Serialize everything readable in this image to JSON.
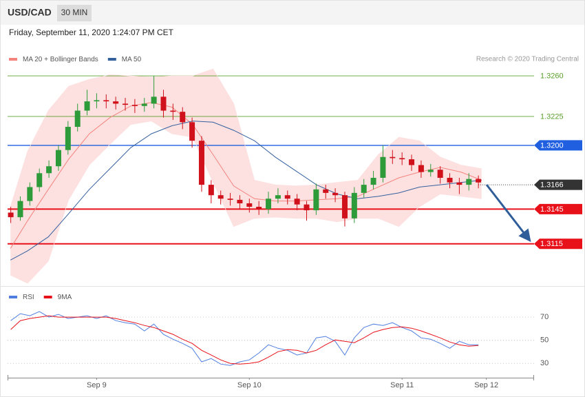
{
  "header": {
    "symbol": "USD/CAD",
    "timeframe": "30 MIN",
    "timestamp": "Friday, September 11, 2020 1:24:07 PM CET"
  },
  "chart_data": [
    {
      "type": "candlestick",
      "source": "Research © 2020 Trading Central",
      "xlim": [
        0,
        165.5
      ],
      "ylim": [
        1.3078,
        1.3266
      ],
      "up_color": "#2e9b3a",
      "down_color": "#d0101a",
      "x": [
        1,
        4,
        7,
        10,
        13,
        16,
        19,
        22,
        25,
        28,
        31,
        34,
        37,
        40,
        43,
        46,
        49,
        52,
        55,
        58,
        61,
        64,
        67,
        70,
        73,
        76,
        79,
        82,
        85,
        88,
        91,
        94,
        97,
        100,
        103,
        106,
        109,
        112,
        115,
        118,
        121,
        124,
        127,
        130,
        133,
        136,
        139,
        142,
        145,
        148
      ],
      "open": [
        1.3142,
        1.3138,
        1.3152,
        1.3164,
        1.3176,
        1.3182,
        1.3196,
        1.3216,
        1.323,
        1.3238,
        1.3239,
        1.3238,
        1.3236,
        1.3235,
        1.3234,
        1.3236,
        1.3242,
        1.323,
        1.3229,
        1.322,
        1.3204,
        1.3166,
        1.3157,
        1.3154,
        1.3153,
        1.315,
        1.3147,
        1.3145,
        1.3154,
        1.3157,
        1.3154,
        1.3149,
        1.3144,
        1.3162,
        1.3159,
        1.3157,
        1.3137,
        1.3159,
        1.3166,
        1.3172,
        1.319,
        1.3189,
        1.3188,
        1.3183,
        1.3177,
        1.3179,
        1.3172,
        1.3168,
        1.3166,
        1.3171
      ],
      "high": [
        1.3147,
        1.3156,
        1.3168,
        1.318,
        1.3187,
        1.32,
        1.3221,
        1.3236,
        1.3248,
        1.3245,
        1.3244,
        1.3242,
        1.3241,
        1.324,
        1.3241,
        1.326,
        1.3248,
        1.3236,
        1.3233,
        1.3224,
        1.3208,
        1.317,
        1.3161,
        1.3159,
        1.3157,
        1.3154,
        1.3152,
        1.316,
        1.3163,
        1.3161,
        1.3158,
        1.3152,
        1.3167,
        1.3166,
        1.3163,
        1.316,
        1.3164,
        1.3171,
        1.3178,
        1.32,
        1.3196,
        1.3194,
        1.3192,
        1.3187,
        1.3184,
        1.3182,
        1.3176,
        1.3172,
        1.3176,
        1.3174
      ],
      "low": [
        1.3133,
        1.3135,
        1.3148,
        1.316,
        1.3172,
        1.3178,
        1.3192,
        1.3212,
        1.3226,
        1.3232,
        1.3232,
        1.3231,
        1.323,
        1.3228,
        1.3229,
        1.3232,
        1.3224,
        1.3222,
        1.3214,
        1.3198,
        1.316,
        1.315,
        1.3149,
        1.3148,
        1.3145,
        1.3142,
        1.314,
        1.3141,
        1.315,
        1.3149,
        1.3144,
        1.3135,
        1.314,
        1.3154,
        1.3151,
        1.313,
        1.3133,
        1.3155,
        1.3162,
        1.3168,
        1.3184,
        1.3183,
        1.3178,
        1.3172,
        1.3173,
        1.3167,
        1.3163,
        1.3158,
        1.3161,
        1.3163
      ],
      "close": [
        1.3138,
        1.3152,
        1.3164,
        1.3176,
        1.3182,
        1.3196,
        1.3216,
        1.323,
        1.3238,
        1.3239,
        1.3238,
        1.3236,
        1.3235,
        1.3234,
        1.3236,
        1.3242,
        1.323,
        1.3229,
        1.322,
        1.3204,
        1.3166,
        1.3157,
        1.3154,
        1.3153,
        1.315,
        1.3147,
        1.3145,
        1.3154,
        1.3157,
        1.3154,
        1.3149,
        1.3144,
        1.3162,
        1.3159,
        1.3157,
        1.3137,
        1.3159,
        1.3166,
        1.3172,
        1.319,
        1.3189,
        1.3188,
        1.3183,
        1.3177,
        1.3179,
        1.3172,
        1.3168,
        1.3166,
        1.3171,
        1.3168
      ],
      "series": [
        {
          "name": "MA 20 + Bollinger Bands",
          "color": "#f4827d",
          "band_color": "#fde1e1",
          "x": [
            0.9,
            6.3,
            12.8,
            19.2,
            25.7,
            32.2,
            38.7,
            45.2,
            51.7,
            58.2,
            64.6,
            71.1,
            77.6,
            84.1,
            90.6,
            97.1,
            103.6,
            110.1,
            116.5,
            123.0,
            129.5,
            136.0,
            142.5,
            149.0
          ],
          "values": [
            1.3111,
            1.3135,
            1.3162,
            1.3188,
            1.321,
            1.3224,
            1.3234,
            1.3237,
            1.3233,
            1.3218,
            1.3192,
            1.3165,
            1.3154,
            1.3152,
            1.3152,
            1.3153,
            1.3154,
            1.3156,
            1.3164,
            1.3172,
            1.3177,
            1.3181,
            1.3177,
            1.317
          ],
          "upper": [
            1.3147,
            1.3195,
            1.323,
            1.3251,
            1.3257,
            1.3261,
            1.326,
            1.3259,
            1.326,
            1.326,
            1.3266,
            1.3236,
            1.317,
            1.3166,
            1.3165,
            1.3166,
            1.3168,
            1.317,
            1.3192,
            1.3207,
            1.3204,
            1.319,
            1.3183,
            1.318
          ],
          "lower": [
            1.3088,
            1.3081,
            1.31,
            1.3153,
            1.3183,
            1.3201,
            1.3218,
            1.3221,
            1.321,
            1.3207,
            1.3168,
            1.313,
            1.3137,
            1.3138,
            1.3137,
            1.3137,
            1.3134,
            1.3137,
            1.3137,
            1.313,
            1.3147,
            1.3158,
            1.3156,
            1.3154
          ]
        },
        {
          "name": "MA 50",
          "color": "#35609e",
          "x": [
            0.9,
            6.3,
            12.8,
            19.2,
            25.7,
            32.2,
            38.7,
            45.2,
            51.7,
            58.2,
            64.6,
            71.1,
            77.6,
            84.1,
            90.6,
            97.1,
            103.6,
            110.1,
            116.5,
            123.0,
            129.5,
            136.0,
            142.5,
            149.0
          ],
          "values": [
            1.3101,
            1.3109,
            1.3121,
            1.3141,
            1.3162,
            1.318,
            1.3198,
            1.321,
            1.3217,
            1.3221,
            1.322,
            1.3213,
            1.3204,
            1.319,
            1.3178,
            1.3166,
            1.3158,
            1.3154,
            1.3156,
            1.3159,
            1.3164,
            1.3166,
            1.3168,
            1.317
          ]
        }
      ],
      "levels": [
        {
          "value": 1.326,
          "label": "1.3260",
          "color": "#5aa02c",
          "style": "thin",
          "tag": false
        },
        {
          "value": 1.3225,
          "label": "1.3225",
          "color": "#5aa02c",
          "style": "thin",
          "tag": false
        },
        {
          "value": 1.32,
          "label": "1.3200",
          "color": "#1f5fe0",
          "style": "medium",
          "tag": true
        },
        {
          "value": 1.3166,
          "label": "1.3166",
          "color": "#333333",
          "style": "dotted",
          "tag": true
        },
        {
          "value": 1.3145,
          "label": "1.3145",
          "color": "#e8111a",
          "style": "thick",
          "tag": true
        },
        {
          "value": 1.3115,
          "label": "1.3115",
          "color": "#e8111a",
          "style": "thick",
          "tag": true
        }
      ]
    },
    {
      "type": "line",
      "xlim": [
        0,
        165.5
      ],
      "ylim": [
        20,
        82
      ],
      "yticks": [
        30,
        50,
        70
      ],
      "grid": true,
      "xticks": [
        {
          "value": 28,
          "label": "Sep 9"
        },
        {
          "value": 76,
          "label": "Sep 10"
        },
        {
          "value": 124,
          "label": "Sep 11"
        },
        {
          "value": 150.5,
          "label": "Sep 12"
        }
      ],
      "x": [
        1,
        4,
        7,
        10,
        13,
        16,
        19,
        22,
        25,
        28,
        31,
        34,
        37,
        40,
        43,
        46,
        49,
        52,
        55,
        58,
        61,
        64,
        67,
        70,
        73,
        76,
        79,
        82,
        85,
        88,
        91,
        94,
        97,
        100,
        103,
        106,
        109,
        112,
        115,
        118,
        121,
        124,
        127,
        130,
        133,
        136,
        139,
        142,
        145,
        148
      ],
      "series": [
        {
          "name": "RSI",
          "color": "#4f7ee0",
          "values": [
            67.0,
            73.0,
            71.2,
            74.8,
            70.0,
            72.4,
            68.8,
            70.0,
            71.2,
            68.8,
            71.2,
            67.0,
            65.2,
            64.0,
            58.1,
            64.0,
            55.1,
            50.9,
            47.3,
            43.1,
            31.3,
            34.2,
            29.4,
            28.2,
            31.3,
            33.0,
            39.0,
            46.1,
            43.1,
            41.3,
            37.2,
            39.0,
            52.1,
            53.3,
            49.1,
            37.2,
            52.1,
            61.0,
            64.0,
            62.8,
            65.2,
            61.0,
            58.1,
            52.1,
            50.9,
            47.3,
            43.1,
            49.1,
            46.1,
            46.1
          ]
        },
        {
          "name": "9MA",
          "color": "#e8111a",
          "values": [
            59.3,
            67.0,
            68.8,
            70.0,
            71.2,
            70.0,
            70.0,
            70.0,
            70.0,
            70.0,
            70.0,
            68.8,
            67.0,
            65.2,
            62.8,
            61.0,
            58.1,
            55.1,
            50.9,
            47.3,
            41.3,
            37.2,
            33.0,
            30.0,
            29.4,
            30.0,
            31.3,
            35.4,
            40.1,
            41.9,
            41.3,
            39.0,
            41.3,
            46.1,
            50.3,
            49.1,
            47.9,
            52.1,
            56.9,
            59.3,
            61.0,
            61.6,
            60.4,
            58.1,
            55.1,
            52.1,
            48.5,
            46.1,
            44.9,
            45.5
          ]
        }
      ]
    }
  ]
}
